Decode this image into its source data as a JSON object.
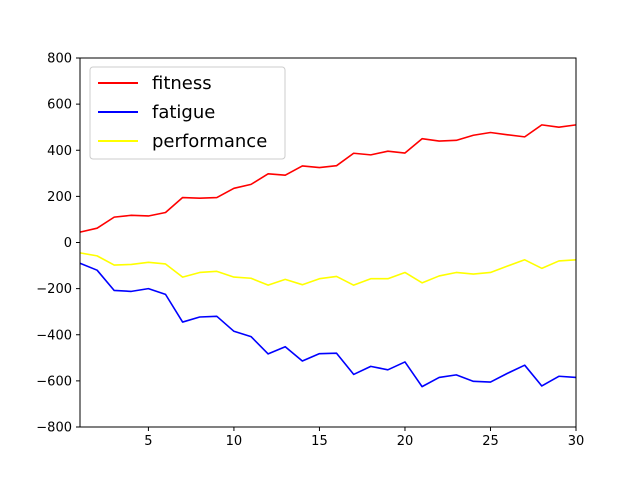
{
  "chart_data": {
    "type": "line",
    "x": [
      1,
      2,
      3,
      4,
      5,
      6,
      7,
      8,
      9,
      10,
      11,
      12,
      13,
      14,
      15,
      16,
      17,
      18,
      19,
      20,
      21,
      22,
      23,
      24,
      25,
      26,
      27,
      28,
      29,
      30
    ],
    "series": [
      {
        "name": "fitness",
        "color": "#ff0000",
        "values": [
          45,
          62,
          110,
          118,
          115,
          130,
          195,
          192,
          195,
          235,
          252,
          298,
          292,
          332,
          325,
          333,
          387,
          380,
          396,
          388,
          450,
          440,
          443,
          465,
          477,
          467,
          458,
          510,
          500,
          510
        ]
      },
      {
        "name": "fatigue",
        "color": "#0000ff",
        "values": [
          -90,
          -120,
          -208,
          -212,
          -200,
          -225,
          -345,
          -323,
          -320,
          -385,
          -408,
          -483,
          -452,
          -514,
          -482,
          -480,
          -572,
          -537,
          -552,
          -518,
          -625,
          -585,
          -574,
          -602,
          -605,
          -567,
          -532,
          -622,
          -580,
          -585
        ]
      },
      {
        "name": "performance",
        "color": "#ffff00",
        "values": [
          -45,
          -58,
          -98,
          -95,
          -86,
          -93,
          -150,
          -130,
          -125,
          -150,
          -155,
          -185,
          -160,
          -183,
          -157,
          -147,
          -185,
          -157,
          -157,
          -130,
          -175,
          -145,
          -130,
          -137,
          -130,
          -102,
          -75,
          -112,
          -80,
          -75
        ]
      }
    ],
    "xlim": [
      1,
      30
    ],
    "ylim": [
      -800,
      800
    ],
    "xticks": [
      5,
      10,
      15,
      20,
      25,
      30
    ],
    "yticks": [
      -800,
      -600,
      -400,
      -200,
      0,
      200,
      400,
      600,
      800
    ],
    "grid": false,
    "legend_position": "top-left",
    "title": "",
    "xlabel": "",
    "ylabel": ""
  }
}
